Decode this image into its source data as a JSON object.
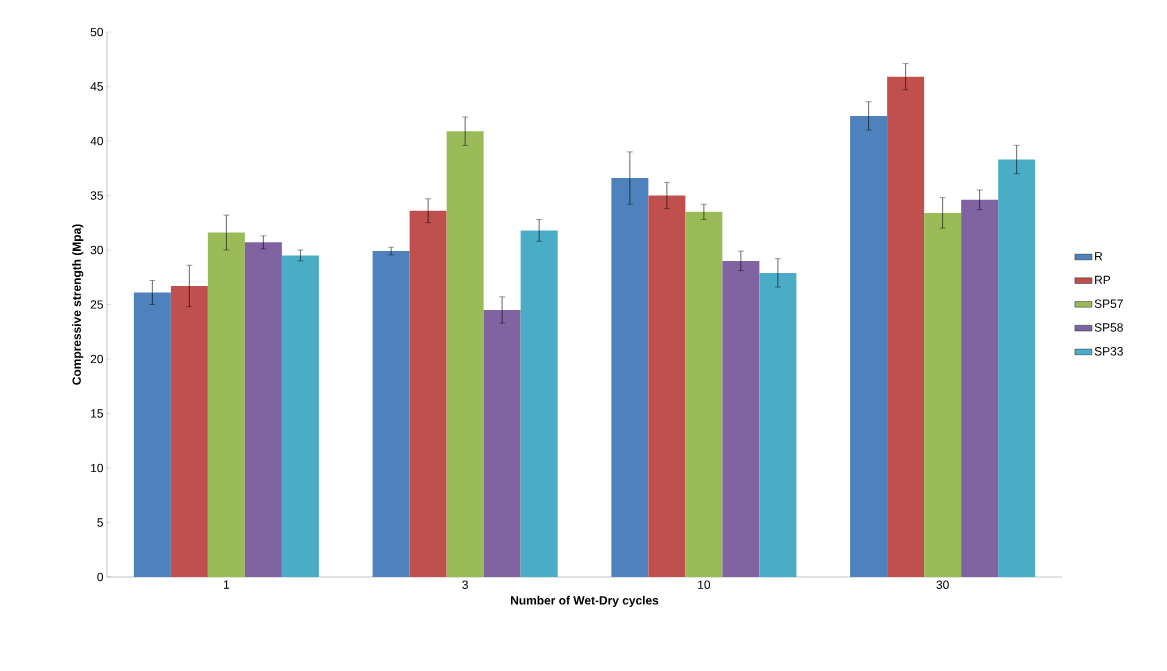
{
  "chart_data": {
    "type": "bar",
    "xlabel": "Number of Wet-Dry cycles",
    "ylabel": "Compressive strength (Mpa)",
    "categories": [
      "1",
      "3",
      "10",
      "30"
    ],
    "series": [
      {
        "name": "R",
        "color": "#4f81bd",
        "values": [
          26.1,
          29.9,
          36.6,
          42.3
        ],
        "errors": [
          1.1,
          0.35,
          2.4,
          1.3
        ]
      },
      {
        "name": "RP",
        "color": "#c0504d",
        "values": [
          26.7,
          33.6,
          35.0,
          45.9
        ],
        "errors": [
          1.9,
          1.1,
          1.2,
          1.2
        ]
      },
      {
        "name": "SP57",
        "color": "#9bbb59",
        "values": [
          31.6,
          40.9,
          33.5,
          33.4
        ],
        "errors": [
          1.6,
          1.3,
          0.7,
          1.4
        ]
      },
      {
        "name": "SP58",
        "color": "#8064a2",
        "values": [
          30.7,
          24.5,
          29.0,
          34.6
        ],
        "errors": [
          0.6,
          1.2,
          0.9,
          0.9
        ]
      },
      {
        "name": "SP33",
        "color": "#4bacc6",
        "values": [
          29.5,
          31.8,
          27.9,
          38.3
        ],
        "errors": [
          0.5,
          1.0,
          1.3,
          1.3
        ]
      }
    ],
    "ylim": [
      0,
      50
    ],
    "yticks": [
      0,
      5,
      10,
      15,
      20,
      25,
      30,
      35,
      40,
      45,
      50
    ],
    "grid": false,
    "legend": "right"
  }
}
